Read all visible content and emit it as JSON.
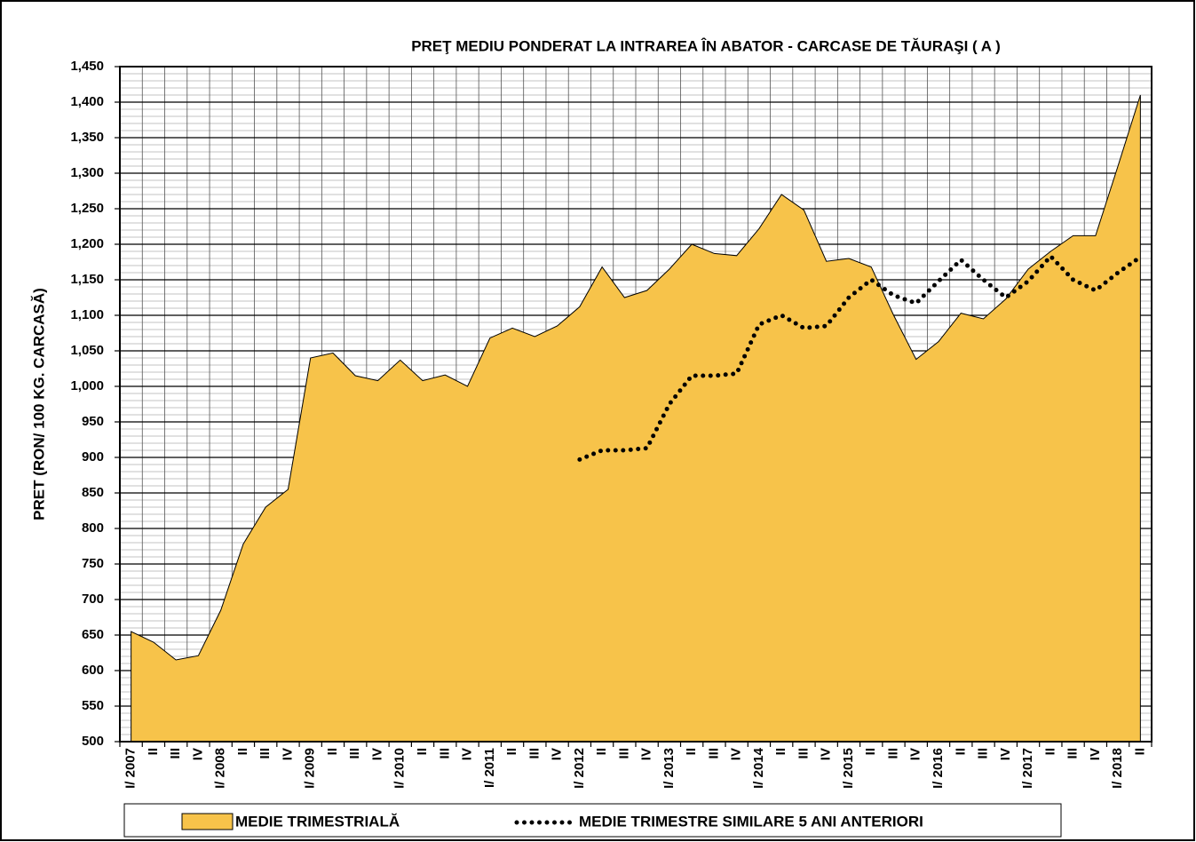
{
  "chart_data": {
    "type": "area",
    "title": "PREŢ MEDIU PONDERAT LA INTRAREA ÎN ABATOR - CARCASE DE TĂURAŞI ( A )",
    "y_label": "PRET (RON/ 100 KG. CARCASĂ)",
    "categories": [
      "I/ 2007",
      "II",
      "III",
      "IV",
      "I/ 2008",
      "II",
      "III",
      "IV",
      "I/ 2009",
      "II",
      "III",
      "IV",
      "I/ 2010",
      "II",
      "III",
      "IV",
      "I/ 2011",
      "II",
      "III",
      "IV",
      "I/ 2012",
      "II",
      "III",
      "IV",
      "I/ 2013",
      "II",
      "III",
      "IV",
      "I/ 2014",
      "II",
      "III",
      "IV",
      "I/ 2015",
      "II",
      "III",
      "IV",
      "I/ 2016",
      "II",
      "III",
      "IV",
      "I/ 2017",
      "II",
      "III",
      "IV",
      "I/ 2018",
      "II"
    ],
    "series": [
      {
        "name": "MEDIE TRIMESTRIALĂ",
        "type": "area",
        "color": "#f7c34a",
        "values": [
          655,
          640,
          615,
          621,
          685,
          778,
          830,
          855,
          1040,
          1047,
          1015,
          1008,
          1037,
          1008,
          1016,
          1000,
          1068,
          1082,
          1070,
          1085,
          1112,
          1168,
          1125,
          1135,
          1165,
          1200,
          1187,
          1184,
          1222,
          1270,
          1248,
          1176,
          1180,
          1168,
          1100,
          1038,
          1063,
          1103,
          1095,
          1123,
          1165,
          1190,
          1212,
          1212,
          1310,
          1410
        ]
      },
      {
        "name": "MEDIE TRIMESTRE SIMILARE 5 ANI ANTERIORI",
        "type": "line",
        "color": "#000000",
        "values": [
          null,
          null,
          null,
          null,
          null,
          null,
          null,
          null,
          null,
          null,
          null,
          null,
          null,
          null,
          null,
          null,
          null,
          null,
          null,
          null,
          897,
          910,
          910,
          913,
          975,
          1015,
          1015,
          1018,
          1087,
          1100,
          1082,
          1085,
          1125,
          1150,
          1128,
          1117,
          1148,
          1178,
          1150,
          1125,
          1148,
          1183,
          1150,
          1135,
          1160,
          1182
        ]
      }
    ],
    "ylim": [
      500,
      1450
    ],
    "yticks": [
      500,
      550,
      600,
      650,
      700,
      750,
      800,
      850,
      900,
      950,
      {
        "value": 1000,
        "label": "1,000"
      },
      {
        "value": 1050,
        "label": "1,050"
      },
      {
        "value": 1100,
        "label": "1,100"
      },
      {
        "value": 1150,
        "label": "1,150"
      },
      {
        "value": 1200,
        "label": "1,200"
      },
      {
        "value": 1250,
        "label": "1,250"
      },
      {
        "value": 1300,
        "label": "1,300"
      },
      {
        "value": 1350,
        "label": "1,350"
      },
      {
        "value": 1400,
        "label": "1,400"
      },
      {
        "value": 1450,
        "label": "1,450"
      }
    ],
    "y_minor_step": 10,
    "grid": true,
    "legend": "bottom"
  }
}
